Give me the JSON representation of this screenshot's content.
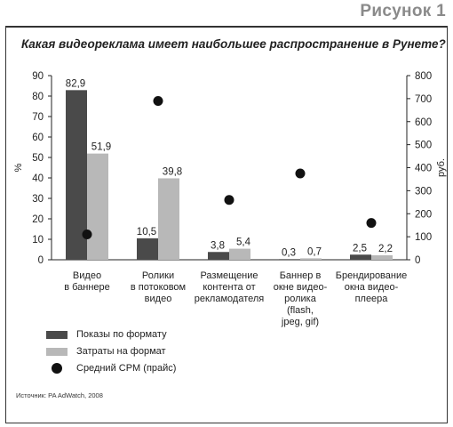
{
  "figure_label": "Рисунок 1",
  "source": "Источник: PA AdWatch, 2008",
  "colors": {
    "impressions": "#4a4a4a",
    "spend": "#b8b8b8",
    "cpm": "#111111"
  },
  "chart_data": {
    "type": "bar",
    "title": "Какая видеореклама имеет наибольшее распространение в Рунете?",
    "ylabel": "%",
    "y2label": "руб.",
    "ylim": [
      0,
      90
    ],
    "y2lim": [
      0,
      800
    ],
    "yticks": [
      0,
      10,
      20,
      30,
      40,
      50,
      60,
      70,
      80,
      90
    ],
    "y2ticks": [
      0,
      100,
      200,
      300,
      400,
      500,
      600,
      700,
      800
    ],
    "categories": [
      [
        "Видео",
        "в баннере"
      ],
      [
        "Ролики",
        "в потоковом",
        "видео"
      ],
      [
        "Размещение",
        "контента от",
        "рекламодателя"
      ],
      [
        "Баннер в",
        "окне видео-",
        "ролика",
        "(flash,",
        "jpeg, gif)"
      ],
      [
        "Брендирование",
        "окна видео-",
        "плеера"
      ]
    ],
    "series": [
      {
        "name": "Показы по формату",
        "type": "bar",
        "axis": "left",
        "values": [
          82.9,
          10.5,
          3.8,
          0.3,
          2.5
        ],
        "labels": [
          "82,9",
          "10,5",
          "3,8",
          "0,3",
          "2,5"
        ]
      },
      {
        "name": "Затраты на формат",
        "type": "bar",
        "axis": "left",
        "values": [
          51.9,
          39.8,
          5.4,
          0.7,
          2.2
        ],
        "labels": [
          "51,9",
          "39,8",
          "5,4",
          "0,7",
          "2,2"
        ]
      },
      {
        "name": "Средний CPM (прайс)",
        "type": "scatter",
        "axis": "right",
        "values": [
          110,
          690,
          260,
          375,
          160
        ]
      }
    ],
    "grid": false,
    "legend_position": "bottom-left"
  }
}
